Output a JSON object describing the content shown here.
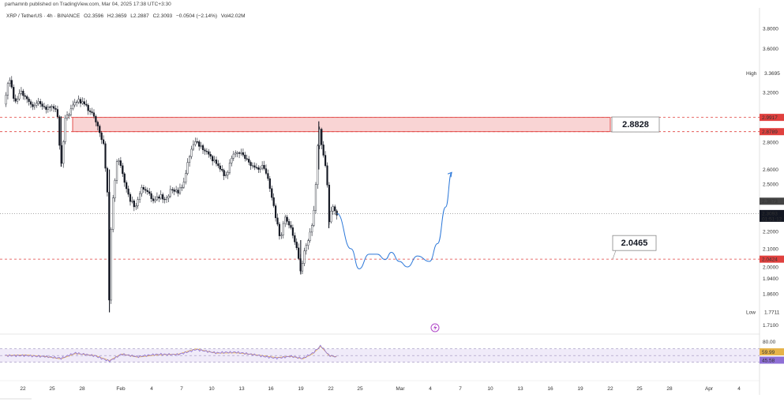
{
  "header": {
    "publish_line": "parhamnb published on TradingView.com, Mar 04, 2025 17:38 UTC+3:30"
  },
  "legend": {
    "symbol": "XRP / TetherUS · 4h · BINANCE",
    "open": "O2.3596",
    "high": "H2.3659",
    "low": "L2.2887",
    "close": "C2.3093",
    "change": "−0.0504 (−2.14%)",
    "volume": "Vol42.02M"
  },
  "colors": {
    "candle": "#131722",
    "zone_fill": "#f8c9c9",
    "zone_border": "#e0403e",
    "dashed_red": "#e0403e",
    "projection": "#2c78d9",
    "rsi_band": "#ece6f7",
    "rsi_line": "#8e6fd6",
    "rsi_ma": "#e6b34a"
  },
  "chart_data": {
    "type": "line",
    "price_axis_ticks": [
      "3.8000",
      "3.6000",
      "3.2000",
      "2.8000",
      "2.6000",
      "2.5000",
      "2.2000",
      "2.1000",
      "2.0000",
      "1.9400",
      "1.8600",
      "1.7100"
    ],
    "price_axis_labels": [
      {
        "text": "High",
        "value": "3.3695"
      },
      {
        "text": "",
        "value": "2.9917",
        "tag": "red"
      },
      {
        "text": "",
        "value": "2.8789",
        "tag": "red"
      },
      {
        "text": "",
        "value": "2.3873",
        "tag": "grey"
      },
      {
        "text": "",
        "value": "2.3093",
        "tag": "black",
        "sub": "01:51:12"
      },
      {
        "text": "",
        "value": "2.0424",
        "tag": "red"
      },
      {
        "text": "Low",
        "value": "1.7711"
      }
    ],
    "x_ticks": [
      "22",
      "25",
      "28",
      "Feb",
      "4",
      "7",
      "10",
      "13",
      "16",
      "19",
      "22",
      "25",
      "Mar",
      "4",
      "7",
      "10",
      "13",
      "16",
      "19",
      "22",
      "25",
      "28",
      "Apr",
      "4"
    ],
    "annotations": [
      {
        "label": "2.8828",
        "value": 2.8828
      },
      {
        "label": "2.0465",
        "value": 2.0465
      }
    ],
    "resistance_zone": [
      2.8789,
      2.9917
    ],
    "support_level": 2.0424,
    "current_price": 2.3093,
    "price_path": [
      {
        "t": 0,
        "p": 3.1
      },
      {
        "t": 2,
        "p": 3.35
      },
      {
        "t": 5,
        "p": 3.1
      },
      {
        "t": 8,
        "p": 3.2
      },
      {
        "t": 11,
        "p": 3.16
      },
      {
        "t": 14,
        "p": 3.08
      },
      {
        "t": 17,
        "p": 3.12
      },
      {
        "t": 20,
        "p": 3.06
      },
      {
        "t": 23,
        "p": 3.1
      },
      {
        "t": 26,
        "p": 3.04
      },
      {
        "t": 28,
        "p": 2.62
      },
      {
        "t": 30,
        "p": 2.98
      },
      {
        "t": 33,
        "p": 3.05
      },
      {
        "t": 36,
        "p": 3.14
      },
      {
        "t": 39,
        "p": 3.1
      },
      {
        "t": 42,
        "p": 3.05
      },
      {
        "t": 46,
        "p": 2.95
      },
      {
        "t": 49,
        "p": 2.78
      },
      {
        "t": 51,
        "p": 2.45
      },
      {
        "t": 52,
        "p": 1.77
      },
      {
        "t": 53,
        "p": 2.3
      },
      {
        "t": 56,
        "p": 2.7
      },
      {
        "t": 59,
        "p": 2.55
      },
      {
        "t": 62,
        "p": 2.4
      },
      {
        "t": 65,
        "p": 2.35
      },
      {
        "t": 68,
        "p": 2.48
      },
      {
        "t": 71,
        "p": 2.45
      },
      {
        "t": 74,
        "p": 2.38
      },
      {
        "t": 77,
        "p": 2.42
      },
      {
        "t": 80,
        "p": 2.4
      },
      {
        "t": 83,
        "p": 2.47
      },
      {
        "t": 86,
        "p": 2.44
      },
      {
        "t": 89,
        "p": 2.5
      },
      {
        "t": 92,
        "p": 2.72
      },
      {
        "t": 95,
        "p": 2.8
      },
      {
        "t": 98,
        "p": 2.76
      },
      {
        "t": 101,
        "p": 2.72
      },
      {
        "t": 104,
        "p": 2.66
      },
      {
        "t": 107,
        "p": 2.6
      },
      {
        "t": 110,
        "p": 2.55
      },
      {
        "t": 113,
        "p": 2.7
      },
      {
        "t": 116,
        "p": 2.74
      },
      {
        "t": 119,
        "p": 2.68
      },
      {
        "t": 122,
        "p": 2.64
      },
      {
        "t": 125,
        "p": 2.6
      },
      {
        "t": 128,
        "p": 2.62
      },
      {
        "t": 131,
        "p": 2.52
      },
      {
        "t": 134,
        "p": 2.32
      },
      {
        "t": 137,
        "p": 2.15
      },
      {
        "t": 139,
        "p": 2.3
      },
      {
        "t": 142,
        "p": 2.22
      },
      {
        "t": 145,
        "p": 2.1
      },
      {
        "t": 147,
        "p": 1.96
      },
      {
        "t": 149,
        "p": 2.1
      },
      {
        "t": 152,
        "p": 2.2
      },
      {
        "t": 154,
        "p": 2.35
      },
      {
        "t": 156,
        "p": 2.95
      },
      {
        "t": 158,
        "p": 2.72
      },
      {
        "t": 160,
        "p": 2.55
      },
      {
        "t": 161,
        "p": 2.25
      },
      {
        "t": 163,
        "p": 2.36
      },
      {
        "t": 165,
        "p": 2.31
      }
    ],
    "projection_path": [
      {
        "t": 165,
        "p": 2.31
      },
      {
        "t": 172,
        "p": 2.1
      },
      {
        "t": 176,
        "p": 1.99
      },
      {
        "t": 181,
        "p": 2.07
      },
      {
        "t": 185,
        "p": 2.07
      },
      {
        "t": 189,
        "p": 2.04
      },
      {
        "t": 192,
        "p": 2.08
      },
      {
        "t": 196,
        "p": 2.03
      },
      {
        "t": 200,
        "p": 2.0
      },
      {
        "t": 205,
        "p": 2.06
      },
      {
        "t": 211,
        "p": 2.03
      },
      {
        "t": 215,
        "p": 2.13
      },
      {
        "t": 219,
        "p": 2.35
      },
      {
        "t": 222,
        "p": 2.58
      }
    ],
    "rsi_axis": [
      "80.00",
      "59.99",
      "45.58"
    ],
    "rsi_values": [
      {
        "t": 0,
        "v": 50
      },
      {
        "t": 10,
        "v": 52
      },
      {
        "t": 20,
        "v": 47
      },
      {
        "t": 28,
        "v": 40
      },
      {
        "t": 35,
        "v": 56
      },
      {
        "t": 45,
        "v": 50
      },
      {
        "t": 52,
        "v": 35
      },
      {
        "t": 58,
        "v": 55
      },
      {
        "t": 66,
        "v": 45
      },
      {
        "t": 76,
        "v": 52
      },
      {
        "t": 86,
        "v": 54
      },
      {
        "t": 95,
        "v": 70
      },
      {
        "t": 105,
        "v": 57
      },
      {
        "t": 115,
        "v": 58
      },
      {
        "t": 125,
        "v": 52
      },
      {
        "t": 135,
        "v": 44
      },
      {
        "t": 142,
        "v": 48
      },
      {
        "t": 148,
        "v": 40
      },
      {
        "t": 153,
        "v": 55
      },
      {
        "t": 157,
        "v": 78
      },
      {
        "t": 161,
        "v": 50
      },
      {
        "t": 165,
        "v": 46
      }
    ]
  }
}
